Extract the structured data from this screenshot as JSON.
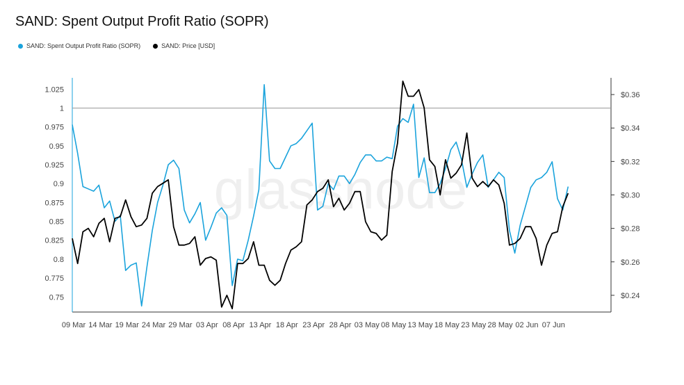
{
  "chart_data": {
    "type": "line",
    "title": "SAND: Spent Output Profit Ratio (SOPR)",
    "watermark": "glassnode",
    "legend_position": "top-left",
    "colors": {
      "sopr": "#1aa3dc",
      "price": "#000000",
      "baseline": "#999999"
    },
    "x_ticks": [
      "09 Mar",
      "14 Mar",
      "19 Mar",
      "24 Mar",
      "29 Mar",
      "03 Apr",
      "08 Apr",
      "13 Apr",
      "18 Apr",
      "23 Apr",
      "28 Apr",
      "03 May",
      "08 May",
      "13 May",
      "18 May",
      "23 May",
      "28 May",
      "02 Jun",
      "07 Jun"
    ],
    "y_left": {
      "ticks": [
        "0.75",
        "0.775",
        "0.8",
        "0.825",
        "0.85",
        "0.875",
        "0.9",
        "0.925",
        "0.95",
        "0.975",
        "1",
        "1.025"
      ],
      "range": [
        0.73,
        1.04
      ],
      "baseline": 1
    },
    "y_right": {
      "ticks": [
        "$0.24",
        "$0.26",
        "$0.28",
        "$0.30",
        "$0.32",
        "$0.34",
        "$0.36"
      ],
      "range": [
        0.23,
        0.37
      ]
    },
    "series": [
      {
        "name": "SAND: Spent Output Profit Ratio (SOPR)",
        "axis": "left",
        "values": [
          0.978,
          0.94,
          0.896,
          0.893,
          0.89,
          0.898,
          0.868,
          0.877,
          0.85,
          0.858,
          0.785,
          0.792,
          0.795,
          0.738,
          0.79,
          0.838,
          0.875,
          0.898,
          0.925,
          0.931,
          0.92,
          0.865,
          0.848,
          0.86,
          0.875,
          0.825,
          0.842,
          0.861,
          0.868,
          0.858,
          0.765,
          0.8,
          0.798,
          0.825,
          0.857,
          0.892,
          1.031,
          0.93,
          0.92,
          0.92,
          0.935,
          0.95,
          0.953,
          0.96,
          0.97,
          0.98,
          0.865,
          0.87,
          0.9,
          0.892,
          0.91,
          0.91,
          0.9,
          0.912,
          0.928,
          0.938,
          0.938,
          0.93,
          0.93,
          0.935,
          0.933,
          0.976,
          0.986,
          0.981,
          1.005,
          0.908,
          0.934,
          0.888,
          0.888,
          0.9,
          0.92,
          0.945,
          0.955,
          0.932,
          0.895,
          0.913,
          0.928,
          0.938,
          0.895,
          0.905,
          0.915,
          0.908,
          0.838,
          0.808,
          0.845,
          0.87,
          0.895,
          0.905,
          0.908,
          0.915,
          0.929,
          0.88,
          0.865,
          0.896
        ]
      },
      {
        "name": "SAND: Price [USD]",
        "axis": "right",
        "values": [
          0.274,
          0.259,
          0.278,
          0.28,
          0.275,
          0.283,
          0.286,
          0.272,
          0.286,
          0.287,
          0.297,
          0.287,
          0.281,
          0.282,
          0.286,
          0.301,
          0.305,
          0.307,
          0.309,
          0.281,
          0.27,
          0.27,
          0.271,
          0.275,
          0.258,
          0.262,
          0.263,
          0.261,
          0.233,
          0.24,
          0.232,
          0.259,
          0.259,
          0.262,
          0.272,
          0.258,
          0.258,
          0.249,
          0.246,
          0.249,
          0.259,
          0.267,
          0.269,
          0.272,
          0.294,
          0.297,
          0.302,
          0.304,
          0.309,
          0.293,
          0.298,
          0.291,
          0.295,
          0.302,
          0.302,
          0.284,
          0.278,
          0.277,
          0.273,
          0.276,
          0.314,
          0.331,
          0.368,
          0.359,
          0.359,
          0.363,
          0.352,
          0.321,
          0.317,
          0.3,
          0.321,
          0.31,
          0.313,
          0.318,
          0.337,
          0.31,
          0.305,
          0.308,
          0.305,
          0.309,
          0.306,
          0.295,
          0.27,
          0.271,
          0.274,
          0.281,
          0.281,
          0.274,
          0.258,
          0.27,
          0.277,
          0.278,
          0.293,
          0.301
        ]
      }
    ]
  }
}
